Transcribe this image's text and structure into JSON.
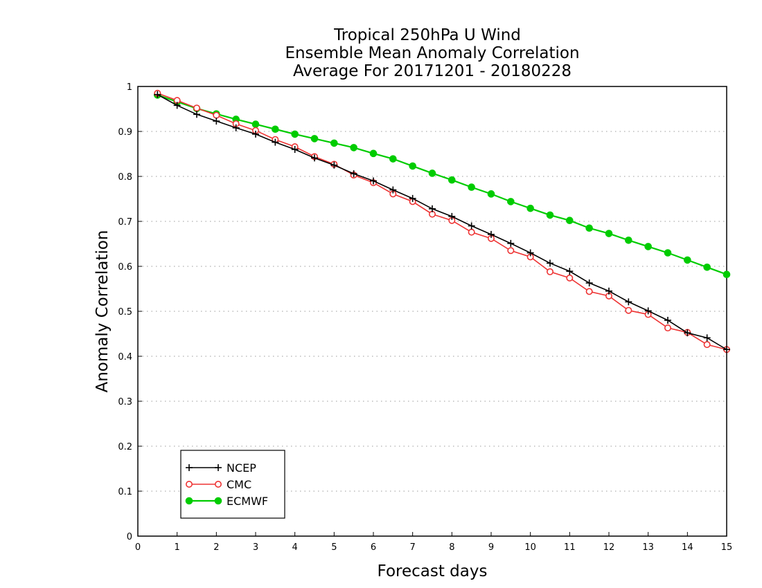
{
  "chart_data": {
    "type": "line",
    "title": [
      "Tropical 250hPa U Wind",
      "Ensemble Mean Anomaly Correlation",
      "Average For 20171201 - 20180228"
    ],
    "xlabel": "Forecast days",
    "ylabel": "Anomaly Correlation",
    "xlim": [
      0,
      15
    ],
    "ylim": [
      0,
      1
    ],
    "xticks": [
      0,
      1,
      2,
      3,
      4,
      5,
      6,
      7,
      8,
      9,
      10,
      11,
      12,
      13,
      14,
      15
    ],
    "yticks": [
      0,
      0.1,
      0.2,
      0.3,
      0.4,
      0.5,
      0.6,
      0.7,
      0.8,
      0.9,
      1
    ],
    "ytick_labels": [
      "0",
      "0.1",
      "0.2",
      "0.3",
      "0.4",
      "0.5",
      "0.6",
      "0.7",
      "0.8",
      "0.9",
      "1"
    ],
    "grid": "horizontal-dotted",
    "legend_position": "bottom-left",
    "x": [
      0.5,
      1,
      1.5,
      2,
      2.5,
      3,
      3.5,
      4,
      4.5,
      5,
      5.5,
      6,
      6.5,
      7,
      7.5,
      8,
      8.5,
      9,
      9.5,
      10,
      10.5,
      11,
      11.5,
      12,
      12.5,
      13,
      13.5,
      14,
      14.5,
      15
    ],
    "series": [
      {
        "name": "NCEP",
        "color": "#000000",
        "marker": "plus",
        "values": [
          0.982,
          0.958,
          0.938,
          0.923,
          0.908,
          0.894,
          0.876,
          0.86,
          0.841,
          0.825,
          0.806,
          0.79,
          0.77,
          0.751,
          0.728,
          0.711,
          0.69,
          0.671,
          0.651,
          0.63,
          0.607,
          0.589,
          0.563,
          0.545,
          0.521,
          0.501,
          0.48,
          0.452,
          0.441,
          0.415
        ]
      },
      {
        "name": "CMC",
        "color": "#ee3333",
        "marker": "open-circle",
        "values": [
          0.985,
          0.969,
          0.952,
          0.936,
          0.917,
          0.902,
          0.882,
          0.866,
          0.844,
          0.827,
          0.803,
          0.786,
          0.761,
          0.744,
          0.716,
          0.702,
          0.676,
          0.662,
          0.635,
          0.621,
          0.588,
          0.574,
          0.544,
          0.534,
          0.502,
          0.493,
          0.463,
          0.453,
          0.426,
          0.415
        ]
      },
      {
        "name": "ECMWF",
        "color": "#00cc00",
        "marker": "filled-circle",
        "values": [
          0.981,
          0.966,
          0.951,
          0.939,
          0.927,
          0.916,
          0.905,
          0.894,
          0.884,
          0.874,
          0.864,
          0.851,
          0.839,
          0.823,
          0.807,
          0.792,
          0.776,
          0.761,
          0.744,
          0.729,
          0.714,
          0.702,
          0.685,
          0.673,
          0.658,
          0.644,
          0.63,
          0.614,
          0.598,
          0.582
        ]
      }
    ]
  }
}
